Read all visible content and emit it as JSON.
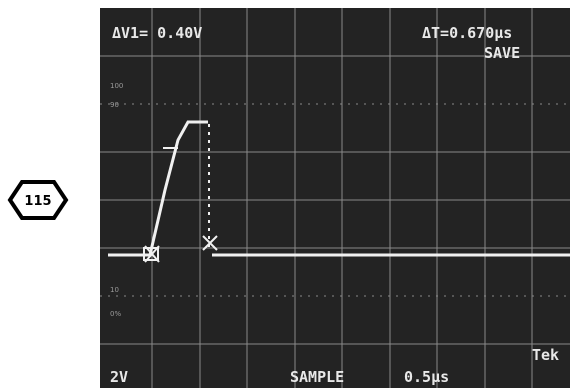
{
  "badge": "115",
  "screen": {
    "delta_v": "ΔV1= 0.40V",
    "delta_t": "ΔT=0.670µs",
    "mode": "SAVE",
    "graticule_labels": [
      "100",
      "90",
      "10",
      "0%"
    ],
    "volts_per_div": "2V",
    "acquisition": "SAMPLE",
    "time_per_div": "0.5µs",
    "brand": "Tek"
  }
}
